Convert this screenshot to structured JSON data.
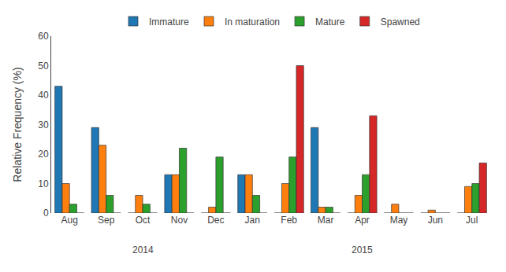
{
  "chart_data": {
    "type": "bar",
    "categories": [
      "Aug",
      "Sep",
      "Oct",
      "Nov",
      "Dec",
      "Jan",
      "Feb",
      "Mar",
      "Apr",
      "May",
      "Jun",
      "Jul"
    ],
    "series": [
      {
        "name": "Immature",
        "values": [
          43,
          29,
          0,
          13,
          0,
          13,
          0,
          29,
          0,
          0,
          0,
          0
        ]
      },
      {
        "name": "In maturation",
        "values": [
          10,
          23,
          6,
          13,
          2,
          13,
          10,
          2,
          6,
          3,
          1,
          9
        ]
      },
      {
        "name": "Mature",
        "values": [
          3,
          6,
          3,
          22,
          19,
          6,
          19,
          2,
          13,
          0,
          0,
          10
        ]
      },
      {
        "name": "Spawned",
        "values": [
          0,
          0,
          0,
          0,
          0,
          0,
          50,
          0,
          33,
          0,
          0,
          17
        ]
      }
    ],
    "ylabel": "Relative Frequency (%)",
    "ylim": [
      0,
      60
    ],
    "yticks": [
      0,
      10,
      20,
      30,
      40,
      50,
      60
    ],
    "annotations": [
      {
        "text": "2014",
        "x": "Oct"
      },
      {
        "text": "2015",
        "x": "Apr"
      }
    ],
    "grid": false,
    "legend": "top"
  }
}
